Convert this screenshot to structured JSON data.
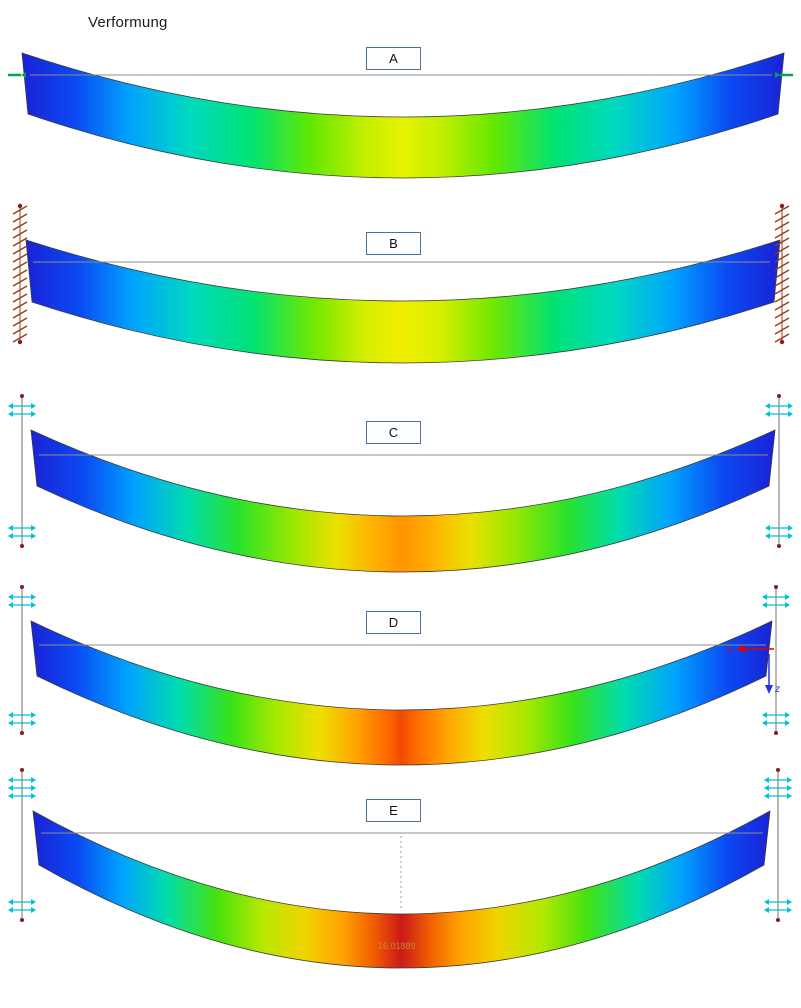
{
  "title": "Verformung",
  "beams": [
    {
      "id": "A",
      "label": "A",
      "support": "green-ticks",
      "gradient_half": [
        [
          "#1a22d6",
          0
        ],
        [
          "#0b49f2",
          7
        ],
        [
          "#00a2ff",
          14
        ],
        [
          "#00d9c0",
          22
        ],
        [
          "#00e274",
          30
        ],
        [
          "#63e800",
          38
        ],
        [
          "#c2ef00",
          45
        ],
        [
          "#e6f200",
          50
        ]
      ]
    },
    {
      "id": "B",
      "label": "B",
      "support": "hatched-wall",
      "gradient_half": [
        [
          "#1a22d6",
          0
        ],
        [
          "#0b49f2",
          7
        ],
        [
          "#00a2ff",
          14
        ],
        [
          "#00d9c0",
          22
        ],
        [
          "#00e274",
          30
        ],
        [
          "#6fe800",
          38
        ],
        [
          "#d6ee00",
          45
        ],
        [
          "#f2ee00",
          50
        ]
      ]
    },
    {
      "id": "C",
      "label": "C",
      "support": "pinned-post",
      "gradient_half": [
        [
          "#1a22d6",
          0
        ],
        [
          "#0b49f2",
          7
        ],
        [
          "#00a2ff",
          14
        ],
        [
          "#00dcae",
          21
        ],
        [
          "#2ae22c",
          28
        ],
        [
          "#96e800",
          35
        ],
        [
          "#ebe000",
          41
        ],
        [
          "#ffb200",
          46
        ],
        [
          "#ff9300",
          50
        ]
      ]
    },
    {
      "id": "D",
      "label": "D",
      "support": "pinned-post",
      "axes": {
        "x_label": "x",
        "z_label": "z",
        "x_color": "#e00000",
        "z_color": "#2233dd"
      },
      "gradient_half": [
        [
          "#1a22d6",
          0
        ],
        [
          "#0b49f2",
          6
        ],
        [
          "#00a2ff",
          13
        ],
        [
          "#00dcae",
          20
        ],
        [
          "#38e218",
          27
        ],
        [
          "#a6e800",
          33
        ],
        [
          "#f0de00",
          39
        ],
        [
          "#ffa200",
          44
        ],
        [
          "#ff6a00",
          48
        ],
        [
          "#f04a00",
          50
        ]
      ]
    },
    {
      "id": "E",
      "label": "E",
      "support": "pinned-post-spring",
      "value_label": "16.01889",
      "value_color": "#c8862a",
      "gradient_half": [
        [
          "#1a22d6",
          0
        ],
        [
          "#0b49f2",
          6
        ],
        [
          "#00a2ff",
          12
        ],
        [
          "#00dcae",
          18
        ],
        [
          "#46e20e",
          25
        ],
        [
          "#b4e800",
          31
        ],
        [
          "#f0d400",
          37
        ],
        [
          "#ffa200",
          42
        ],
        [
          "#f26100",
          46
        ],
        [
          "#cc1a1a",
          50
        ]
      ]
    }
  ],
  "colors": {
    "reference_line": "#8c8c8c",
    "beam_outline": "#3c3c3c",
    "support_hatch": "#993c10",
    "support_cyan": "#00c2d4",
    "support_node": "#8b1a1a",
    "label_box_border": "#4f7296",
    "dotted_line": "#9a9a9a",
    "green_tick": "#00a651"
  }
}
